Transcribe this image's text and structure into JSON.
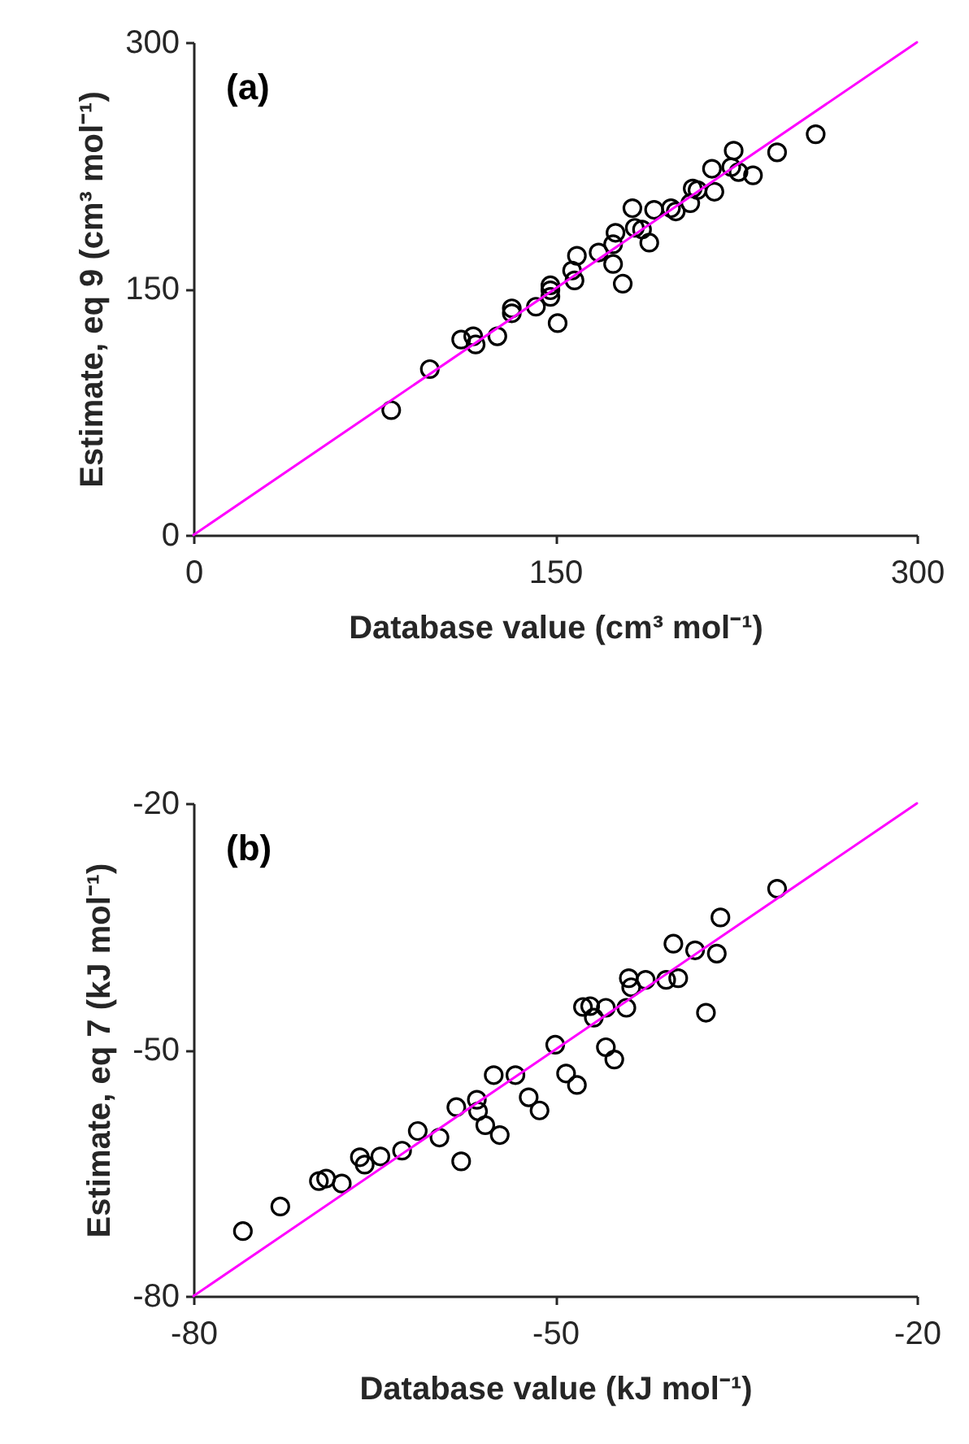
{
  "chart_data": [
    {
      "type": "scatter",
      "annotations": [
        "(a)"
      ],
      "xlabel": "Database value (cm³ mol⁻¹)",
      "ylabel": "Estimate, eq 9 (cm³ mol⁻¹)",
      "xlim": [
        0,
        300
      ],
      "ylim": [
        0,
        300
      ],
      "xticks": [
        0,
        150,
        300
      ],
      "yticks": [
        0,
        150,
        300
      ],
      "marker": "circle",
      "series": [
        {
          "color": "#000000",
          "x": [
            82,
            98,
            111,
            116,
            117,
            126,
            132,
            132,
            142,
            148,
            148,
            148,
            151,
            157,
            159,
            158,
            168,
            174,
            175,
            174,
            178,
            182,
            183,
            186,
            189,
            191,
            198,
            200,
            206,
            207,
            209,
            216,
            215,
            224,
            223,
            226,
            232,
            242,
            258
          ],
          "values": [
            76,
            101,
            119,
            121,
            116,
            121,
            138,
            135,
            139,
            152,
            149,
            145,
            129,
            161,
            170,
            155,
            172,
            177,
            184,
            165,
            153,
            199,
            187,
            186,
            178,
            198,
            199,
            197,
            202,
            211,
            210,
            209,
            223,
            234,
            224,
            221,
            219,
            233,
            244
          ]
        },
        {
          "type": "line",
          "marker": "none",
          "color": "#ff00ff",
          "x": [
            0,
            300
          ],
          "values": [
            0,
            300
          ]
        }
      ]
    },
    {
      "type": "scatter",
      "annotations": [
        "(b)"
      ],
      "xlabel": "Database value (kJ mol⁻¹)",
      "ylabel": "Estimate, eq 7 (kJ mol⁻¹)",
      "xlim": [
        -80,
        -20
      ],
      "ylim": [
        -80,
        -20
      ],
      "xticks": [
        -80,
        -50,
        -20
      ],
      "yticks": [
        -80,
        -50,
        -20
      ],
      "marker": "circle",
      "series": [
        {
          "color": "#000000",
          "x": [
            -75.9,
            -72.8,
            -69.6,
            -69.0,
            -67.7,
            -66.2,
            -65.8,
            -64.5,
            -62.7,
            -61.4,
            -59.6,
            -57.8,
            -58.2,
            -56.5,
            -56.4,
            -55.8,
            -54.6,
            -55.1,
            -53.3,
            -52.2,
            -51.3,
            -50.0,
            -49.1,
            -48.2,
            -47.7,
            -47.1,
            -46.8,
            -45.8,
            -45.8,
            -45.1,
            -44.1,
            -43.9,
            -43.7,
            -42.5,
            -40.8,
            -39.8,
            -40.2,
            -38.4,
            -37.5,
            -36.6,
            -36.3,
            -31.6
          ],
          "values": [
            -72.1,
            -69.1,
            -66.0,
            -65.7,
            -66.3,
            -63.1,
            -64.0,
            -63.0,
            -62.3,
            -59.9,
            -60.7,
            -63.6,
            -57.0,
            -56.1,
            -57.5,
            -59.2,
            -60.4,
            -53.1,
            -53.1,
            -55.8,
            -57.4,
            -49.4,
            -52.9,
            -54.3,
            -44.8,
            -44.7,
            -46.1,
            -44.9,
            -49.7,
            -51.2,
            -44.9,
            -41.3,
            -42.4,
            -41.5,
            -41.5,
            -41.3,
            -37.1,
            -37.9,
            -45.5,
            -38.3,
            -33.9,
            -30.4
          ]
        },
        {
          "type": "line",
          "marker": "none",
          "color": "#ff00ff",
          "x": [
            -80,
            -20
          ],
          "values": [
            -80,
            -20
          ]
        }
      ]
    }
  ]
}
